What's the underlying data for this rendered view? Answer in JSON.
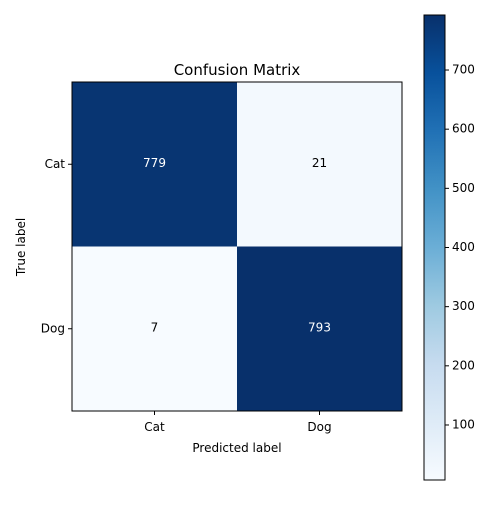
{
  "chart_data": {
    "type": "heatmap",
    "title": "Confusion Matrix",
    "xlabel": "Predicted label",
    "ylabel": "True label",
    "x_categories": [
      "Cat",
      "Dog"
    ],
    "y_categories": [
      "Cat",
      "Dog"
    ],
    "values": [
      [
        779,
        21
      ],
      [
        7,
        793
      ]
    ],
    "colormap": "Blues",
    "colorbar": {
      "vmin": 7,
      "vmax": 793,
      "ticks": [
        100,
        200,
        300,
        400,
        500,
        600,
        700
      ]
    },
    "annotation_colors": {
      "on_dark": "#ffffff",
      "on_light": "#000000"
    }
  }
}
